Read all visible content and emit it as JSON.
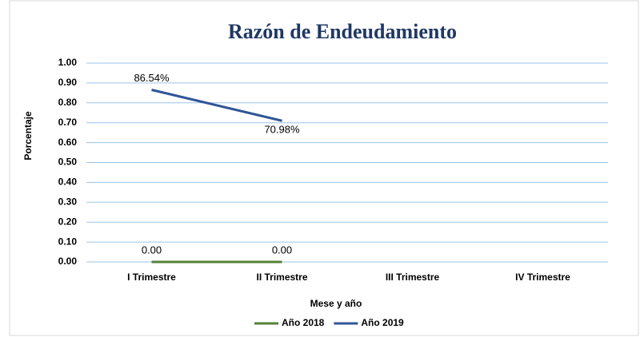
{
  "chart_data": {
    "type": "line",
    "title": "Razón de Endeudamiento",
    "x_label": "Mese y año",
    "y_label": "Porcentaje",
    "categories": [
      "I Trimestre",
      "II Trimestre",
      "III Trimestre",
      "IV Trimestre"
    ],
    "series": [
      {
        "name": "Año 2018",
        "color": "#548235",
        "values": [
          0,
          0,
          null,
          null
        ],
        "value_labels": [
          "0.00",
          "0.00",
          null,
          null
        ]
      },
      {
        "name": "Año 2019",
        "color": "#2f5597",
        "values": [
          0.8654,
          0.7098,
          null,
          null
        ],
        "value_labels": [
          "86.54%",
          "70.98%",
          null,
          null
        ]
      }
    ],
    "ylim": [
      0,
      1
    ],
    "yticks": [
      {
        "value": 0,
        "label": "0.00"
      },
      {
        "value": 0.1,
        "label": "0.10"
      },
      {
        "value": 0.2,
        "label": "0.20"
      },
      {
        "value": 0.3,
        "label": "0.30"
      },
      {
        "value": 0.4,
        "label": "0.40"
      },
      {
        "value": 0.5,
        "label": "0.50"
      },
      {
        "value": 0.6,
        "label": "0.60"
      },
      {
        "value": 0.7,
        "label": "0.70"
      },
      {
        "value": 0.8,
        "label": "0.80"
      },
      {
        "value": 0.9,
        "label": "0.90"
      },
      {
        "value": 1,
        "label": "1.00"
      }
    ],
    "grid": true,
    "legend": "bottom"
  }
}
